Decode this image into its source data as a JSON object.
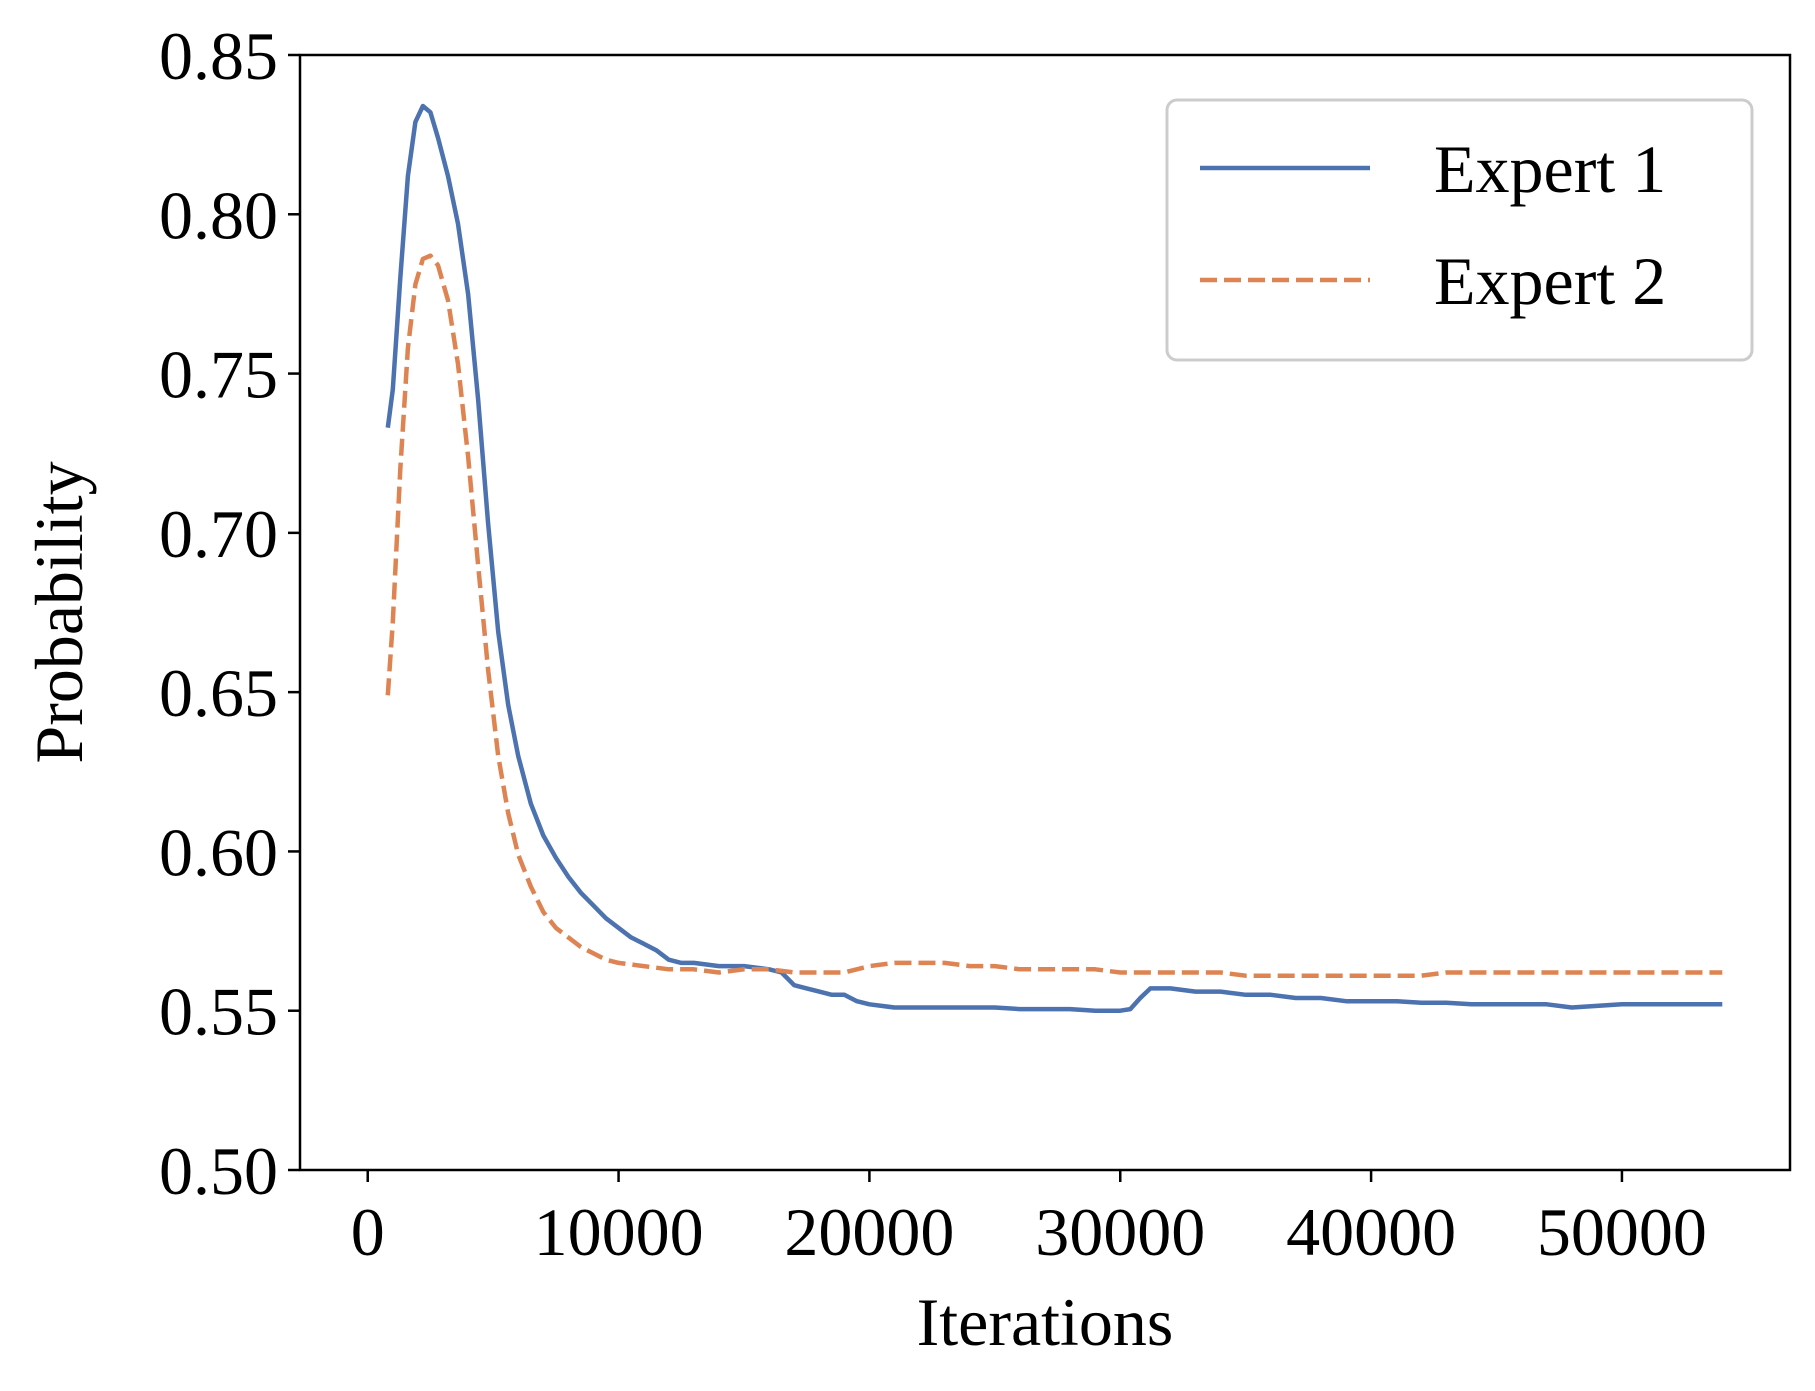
{
  "chart_data": {
    "type": "line",
    "title": "",
    "xlabel": "Iterations",
    "ylabel": "Probability",
    "xlim": [
      -2700,
      56700
    ],
    "ylim": [
      0.5,
      0.85
    ],
    "xticks": [
      0,
      10000,
      20000,
      30000,
      40000,
      50000
    ],
    "xtick_labels": [
      "0",
      "10000",
      "20000",
      "30000",
      "40000",
      "50000"
    ],
    "yticks": [
      0.5,
      0.55,
      0.6,
      0.65,
      0.7,
      0.75,
      0.8,
      0.85
    ],
    "ytick_labels": [
      "0.50",
      "0.55",
      "0.60",
      "0.65",
      "0.70",
      "0.75",
      "0.80",
      "0.85"
    ],
    "grid": false,
    "legend": {
      "position": "top-right"
    },
    "series": [
      {
        "name": "Expert 1",
        "color": "#4C72B0",
        "style": "solid",
        "x": [
          800,
          1000,
          1300,
          1600,
          1900,
          2200,
          2500,
          2800,
          3200,
          3600,
          4000,
          4400,
          4800,
          5200,
          5600,
          6000,
          6500,
          7000,
          7500,
          8000,
          8500,
          9000,
          9500,
          10000,
          10500,
          11000,
          11500,
          12000,
          12500,
          13000,
          14000,
          15000,
          16000,
          16500,
          17000,
          17500,
          18000,
          18500,
          19000,
          19500,
          20000,
          21000,
          22000,
          23000,
          24000,
          25000,
          26000,
          27000,
          28000,
          29000,
          30000,
          30400,
          30800,
          31200,
          32000,
          33000,
          34000,
          35000,
          36000,
          37000,
          38000,
          39000,
          40000,
          41000,
          42000,
          43000,
          44000,
          45000,
          46000,
          47000,
          48000,
          49000,
          50000,
          51000,
          52000,
          53000,
          54000
        ],
        "values": [
          0.733,
          0.745,
          0.78,
          0.812,
          0.829,
          0.834,
          0.832,
          0.824,
          0.812,
          0.797,
          0.775,
          0.742,
          0.703,
          0.669,
          0.646,
          0.63,
          0.615,
          0.605,
          0.598,
          0.592,
          0.587,
          0.583,
          0.579,
          0.576,
          0.573,
          0.571,
          0.569,
          0.566,
          0.565,
          0.565,
          0.564,
          0.564,
          0.563,
          0.562,
          0.558,
          0.557,
          0.556,
          0.555,
          0.555,
          0.553,
          0.552,
          0.551,
          0.551,
          0.551,
          0.551,
          0.551,
          0.5505,
          0.5505,
          0.5505,
          0.55,
          0.55,
          0.5505,
          0.554,
          0.557,
          0.557,
          0.556,
          0.556,
          0.555,
          0.555,
          0.554,
          0.554,
          0.553,
          0.553,
          0.553,
          0.5525,
          0.5525,
          0.552,
          0.552,
          0.552,
          0.552,
          0.551,
          0.5515,
          0.552,
          0.552,
          0.552,
          0.552,
          0.552
        ]
      },
      {
        "name": "Expert 2",
        "color": "#DD8452",
        "style": "dashed",
        "x": [
          800,
          1000,
          1300,
          1600,
          1900,
          2200,
          2500,
          2800,
          3200,
          3600,
          4000,
          4400,
          4800,
          5200,
          5600,
          6000,
          6500,
          7000,
          7500,
          8000,
          8500,
          9000,
          9500,
          10000,
          11000,
          12000,
          13000,
          14000,
          15000,
          16000,
          17000,
          18000,
          19000,
          20000,
          21000,
          22000,
          23000,
          24000,
          25000,
          26000,
          27000,
          28000,
          29000,
          30000,
          31000,
          32000,
          33000,
          34000,
          35000,
          36000,
          37000,
          38000,
          39000,
          40000,
          41000,
          42000,
          43000,
          44000,
          45000,
          46000,
          47000,
          48000,
          49000,
          50000,
          51000,
          52000,
          53000,
          54000
        ],
        "values": [
          0.649,
          0.672,
          0.72,
          0.758,
          0.778,
          0.786,
          0.787,
          0.784,
          0.773,
          0.753,
          0.724,
          0.69,
          0.657,
          0.63,
          0.612,
          0.599,
          0.589,
          0.581,
          0.576,
          0.573,
          0.57,
          0.568,
          0.566,
          0.565,
          0.564,
          0.563,
          0.563,
          0.562,
          0.563,
          0.563,
          0.562,
          0.562,
          0.562,
          0.564,
          0.565,
          0.565,
          0.565,
          0.564,
          0.564,
          0.563,
          0.563,
          0.563,
          0.563,
          0.562,
          0.562,
          0.562,
          0.562,
          0.562,
          0.561,
          0.561,
          0.561,
          0.561,
          0.561,
          0.561,
          0.561,
          0.561,
          0.562,
          0.562,
          0.562,
          0.562,
          0.562,
          0.562,
          0.562,
          0.562,
          0.562,
          0.562,
          0.562,
          0.562
        ]
      }
    ]
  }
}
